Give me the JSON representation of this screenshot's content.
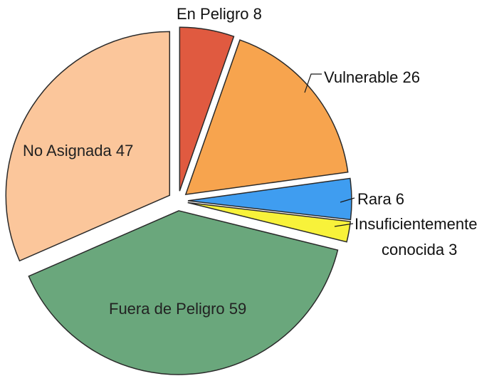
{
  "chart_data": {
    "type": "pie",
    "title": "",
    "slices": [
      {
        "name": "En Peligro",
        "value": 8,
        "label": "En Peligro 8",
        "color": "#e05a40"
      },
      {
        "name": "Vulnerable",
        "value": 26,
        "label": "Vulnerable 26",
        "color": "#f7a44e"
      },
      {
        "name": "Rara",
        "value": 6,
        "label": "Rara 6",
        "color": "#3f9df0"
      },
      {
        "name": "Insuficientemente conocida",
        "value": 3,
        "label_line1": "Insuficientemente",
        "label_line2": "conocida 3",
        "color": "#f8f23a"
      },
      {
        "name": "Fuera de Peligro",
        "value": 59,
        "label": "Fuera de Peligro 59",
        "color": "#6aa77c"
      },
      {
        "name": "No Asignada",
        "value": 47,
        "label": "No Asignada 47",
        "color": "#fbc69b"
      }
    ],
    "exploded": true,
    "legend": "none"
  }
}
